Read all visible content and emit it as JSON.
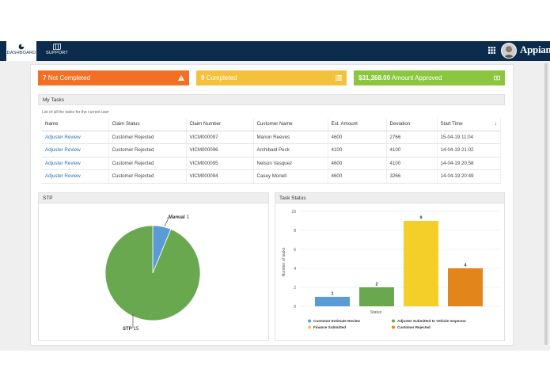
{
  "nav": {
    "dashboard_label": "DASHBOARD",
    "support_label": "SUPPORT",
    "logo_text": "Appian"
  },
  "cards": [
    {
      "value": "7",
      "label": "Not Completed",
      "color": "#f26f24",
      "icon": "warning-icon"
    },
    {
      "value": "9",
      "label": "Completed",
      "color": "#f4c13c",
      "icon": "list-icon"
    },
    {
      "value": "$31,268.00",
      "label": "Amount Approved",
      "color": "#8cc63f",
      "icon": "money-icon"
    }
  ],
  "my_tasks": {
    "title": "My Tasks",
    "subtitle": "List of all the tasks for the current user",
    "columns": [
      "Name",
      "Claim Status",
      "Claim Number",
      "Customer Name",
      "Est. Amount",
      "Deviation",
      "Start Time"
    ],
    "rows": [
      [
        "Adjuster Review",
        "Customer Rejected",
        "VICM000097",
        "Manon  Reeves",
        "4600",
        "2766",
        "15-04-19 11:04"
      ],
      [
        "Adjuster Review",
        "Customer Rejected",
        "VICM000096",
        "Archibald  Peck",
        "4100",
        "4100",
        "14-04-19 21:02"
      ],
      [
        "Adjuster Review",
        "Customer Rejected",
        "VICM000095",
        "Nelson  Vasquez",
        "4600",
        "4100",
        "14-04-19 20:58"
      ],
      [
        "Adjuster Review",
        "Customer Rejected",
        "VICM000094",
        "Casey  Monell",
        "4600",
        "3266",
        "14-04-19 20:49"
      ]
    ]
  },
  "stp": {
    "title": "STP",
    "manual_label": "Manual",
    "manual_value": "1",
    "stp_label": "STP",
    "stp_value": "15"
  },
  "task_status": {
    "title": "Task Status",
    "xlabel": "Status",
    "ylabel": "Number of tasks"
  },
  "chart_data": [
    {
      "type": "pie",
      "title": "STP",
      "categories": [
        "Manual",
        "STP"
      ],
      "values": [
        1,
        15
      ],
      "colors": [
        "#5b9bd5",
        "#6aa84f"
      ]
    },
    {
      "type": "bar",
      "title": "Task Status",
      "categories": [
        "Customer Estimate Review",
        "Adjuster Submitted to Vehicle Inspector",
        "Finance Submitted",
        "Customer Rejected"
      ],
      "values": [
        1,
        2,
        9,
        4
      ],
      "colors": [
        "#5b9bd5",
        "#6aa84f",
        "#f4cf2a",
        "#e2861b"
      ],
      "xlabel": "Status",
      "ylabel": "Number of tasks",
      "ylim": [
        0,
        10
      ],
      "yticks": [
        0,
        2,
        4,
        6,
        8,
        10
      ],
      "legend": "bottom"
    }
  ]
}
